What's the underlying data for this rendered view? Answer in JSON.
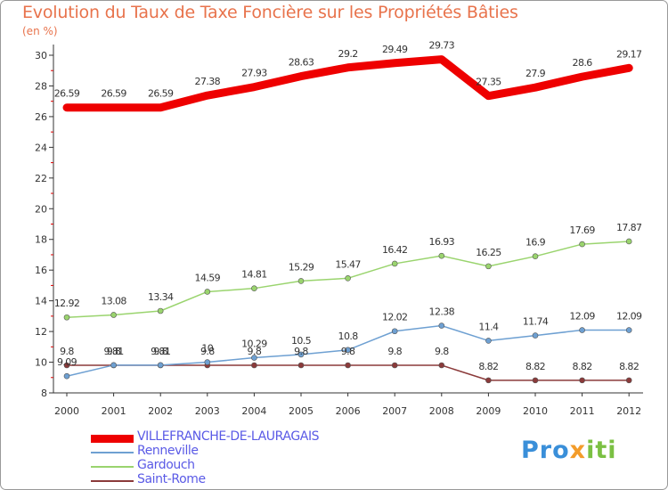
{
  "header": {
    "title": "Evolution du Taux de Taxe Foncière sur les Propriétés Bâties",
    "subtitle": "(en %)"
  },
  "logo": {
    "part1": "Pro",
    "part2": "x",
    "part3": "iti"
  },
  "colors": {
    "frame": "#999999",
    "title": "#e8734c",
    "legend_text": "#5a5ae6"
  },
  "chart_data": {
    "type": "line",
    "title": "Evolution du Taux de Taxe Foncière sur les Propriétés Bâties",
    "ylabel": "(en %)",
    "xlabel": "",
    "x": [
      "2000",
      "2001",
      "2002",
      "2003",
      "2004",
      "2005",
      "2006",
      "2007",
      "2008",
      "2009",
      "2010",
      "2011",
      "2012"
    ],
    "ylim": [
      8,
      30
    ],
    "yticks": [
      8,
      10,
      12,
      14,
      16,
      18,
      20,
      22,
      24,
      26,
      28,
      30
    ],
    "grid": false,
    "legend_position": "bottom-left",
    "series": [
      {
        "name": "VILLEFRANCHE-DE-LAURAGAIS",
        "color": "#ee0000",
        "values": [
          26.59,
          26.59,
          26.59,
          27.38,
          27.93,
          28.63,
          29.2,
          29.49,
          29.73,
          27.35,
          27.9,
          28.6,
          29.17
        ],
        "labels": [
          "26.59",
          "26.59",
          "26.59",
          "27.38",
          "27.93",
          "28.63",
          "29.2",
          "29.49",
          "29.73",
          "27.35",
          "27.9",
          "28.6",
          "29.17"
        ]
      },
      {
        "name": "Renneville",
        "color": "#6ea0d2",
        "values": [
          9.09,
          9.81,
          9.81,
          10,
          10.29,
          10.5,
          10.8,
          12.02,
          12.38,
          11.4,
          11.74,
          12.09,
          12.09
        ],
        "labels": [
          "9.09",
          "9.81",
          "9.81",
          "10",
          "10.29",
          "10.5",
          "10.8",
          "12.02",
          "12.38",
          "11.4",
          "11.74",
          "12.09",
          "12.09"
        ]
      },
      {
        "name": "Gardouch",
        "color": "#9ad46e",
        "values": [
          12.92,
          13.08,
          13.34,
          14.59,
          14.81,
          15.29,
          15.47,
          16.42,
          16.93,
          16.25,
          16.9,
          17.69,
          17.87
        ],
        "labels": [
          "12.92",
          "13.08",
          "13.34",
          "14.59",
          "14.81",
          "15.29",
          "15.47",
          "16.42",
          "16.93",
          "16.25",
          "16.9",
          "17.69",
          "17.87"
        ]
      },
      {
        "name": "Saint-Rome",
        "color": "#8b3a3a",
        "values": [
          9.8,
          9.8,
          9.8,
          9.8,
          9.8,
          9.8,
          9.8,
          9.8,
          9.8,
          8.82,
          8.82,
          8.82,
          8.82
        ],
        "labels": [
          "9.8",
          "9.8",
          "9.8",
          "9.8",
          "9.8",
          "9.8",
          "9.8",
          "9.8",
          "9.8",
          "8.82",
          "8.82",
          "8.82",
          "8.82"
        ]
      }
    ]
  }
}
